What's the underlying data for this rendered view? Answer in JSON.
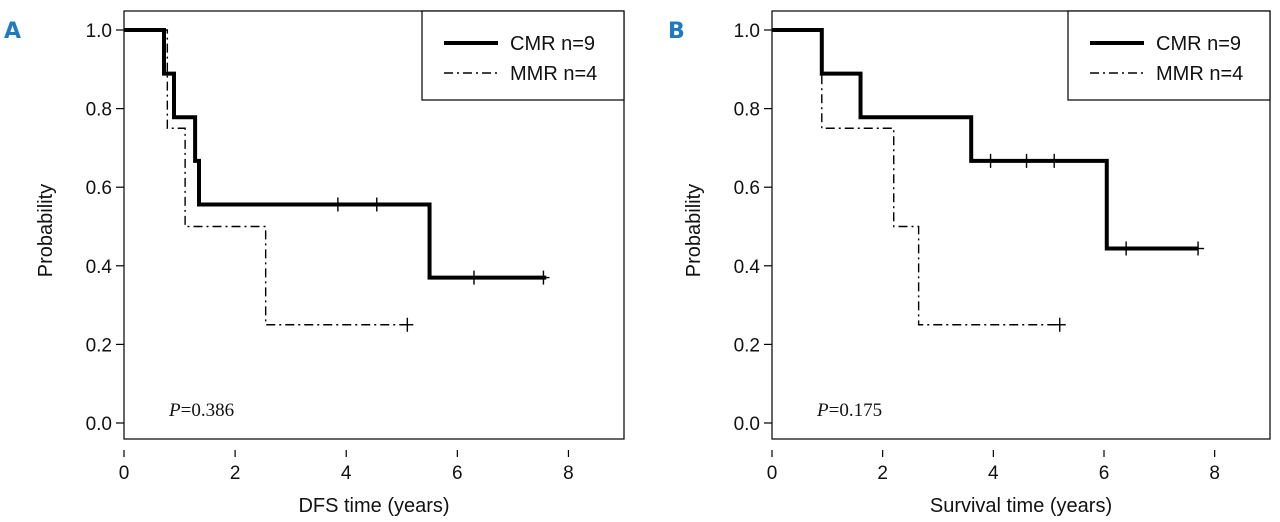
{
  "colors": {
    "panel_letter": "#1f7bbf",
    "line": "#000000",
    "background": "#ffffff"
  },
  "chart_data": [
    {
      "type": "line",
      "panel_label": "A",
      "xlabel": "DFS time (years)",
      "ylabel": "Probability",
      "xlim": [
        0,
        9
      ],
      "ylim": [
        0,
        1.05
      ],
      "xticks": [
        0,
        2,
        4,
        6,
        8
      ],
      "yticks": [
        0.0,
        0.2,
        0.4,
        0.6,
        0.8,
        1.0
      ],
      "ytick_labels": [
        "0.0",
        "0.2",
        "0.4",
        "0.6",
        "0.8",
        "1.0"
      ],
      "p_prefix": "P",
      "p_value": "=0.386",
      "legend_position": "top-right",
      "series": [
        {
          "name": "CMR n=9",
          "style": "solid",
          "steps": [
            [
              0,
              1.0
            ],
            [
              0.72,
              0.889
            ],
            [
              0.9,
              0.778
            ],
            [
              1.28,
              0.667
            ],
            [
              1.35,
              0.556
            ],
            [
              5.5,
              0.37
            ]
          ],
          "end_x": 7.6,
          "censored": [
            [
              3.85,
              0.556
            ],
            [
              4.55,
              0.556
            ],
            [
              6.3,
              0.37
            ],
            [
              7.55,
              0.37
            ]
          ]
        },
        {
          "name": "MMR n=4",
          "style": "dashdot",
          "steps": [
            [
              0,
              1.0
            ],
            [
              0.78,
              0.75
            ],
            [
              1.1,
              0.5
            ],
            [
              2.55,
              0.25
            ]
          ],
          "end_x": 5.1,
          "censored": [
            [
              5.1,
              0.25
            ]
          ]
        }
      ]
    },
    {
      "type": "line",
      "panel_label": "B",
      "xlabel": "Survival time (years)",
      "ylabel": "Probability",
      "xlim": [
        0,
        9
      ],
      "ylim": [
        0,
        1.05
      ],
      "xticks": [
        0,
        2,
        4,
        6,
        8
      ],
      "yticks": [
        0.0,
        0.2,
        0.4,
        0.6,
        0.8,
        1.0
      ],
      "ytick_labels": [
        "0.0",
        "0.2",
        "0.4",
        "0.6",
        "0.8",
        "1.0"
      ],
      "p_prefix": "P",
      "p_value": "=0.175",
      "legend_position": "top-right",
      "series": [
        {
          "name": "CMR n=9",
          "style": "solid",
          "steps": [
            [
              0,
              1.0
            ],
            [
              0.9,
              0.889
            ],
            [
              1.6,
              0.778
            ],
            [
              3.6,
              0.667
            ],
            [
              6.05,
              0.444
            ]
          ],
          "end_x": 7.7,
          "censored": [
            [
              3.95,
              0.667
            ],
            [
              4.6,
              0.667
            ],
            [
              5.1,
              0.667
            ],
            [
              6.4,
              0.444
            ],
            [
              7.7,
              0.444
            ]
          ]
        },
        {
          "name": "MMR n=4",
          "style": "dashdot",
          "steps": [
            [
              0,
              1.0
            ],
            [
              0.9,
              0.75
            ],
            [
              2.2,
              0.5
            ],
            [
              2.65,
              0.25
            ]
          ],
          "end_x": 5.2,
          "censored": [
            [
              5.2,
              0.25
            ]
          ]
        }
      ]
    }
  ]
}
